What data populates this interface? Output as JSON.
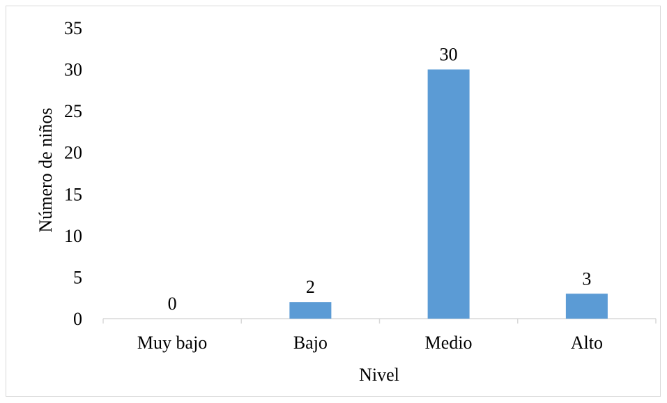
{
  "chart_data": {
    "type": "bar",
    "categories": [
      "Muy bajo",
      "Bajo",
      "Medio",
      "Alto"
    ],
    "values": [
      0,
      2,
      30,
      3
    ],
    "data_labels": [
      "0",
      "2",
      "30",
      "3"
    ],
    "xlabel": "Nivel",
    "ylabel": "Número de niños",
    "ylim": [
      0,
      35
    ],
    "yticks": [
      0,
      5,
      10,
      15,
      20,
      25,
      30,
      35
    ],
    "ytick_labels": [
      "0",
      "5",
      "10",
      "15",
      "20",
      "25",
      "30",
      "35"
    ],
    "grid": false,
    "legend": "none",
    "bar_color": "#5b9bd5"
  }
}
